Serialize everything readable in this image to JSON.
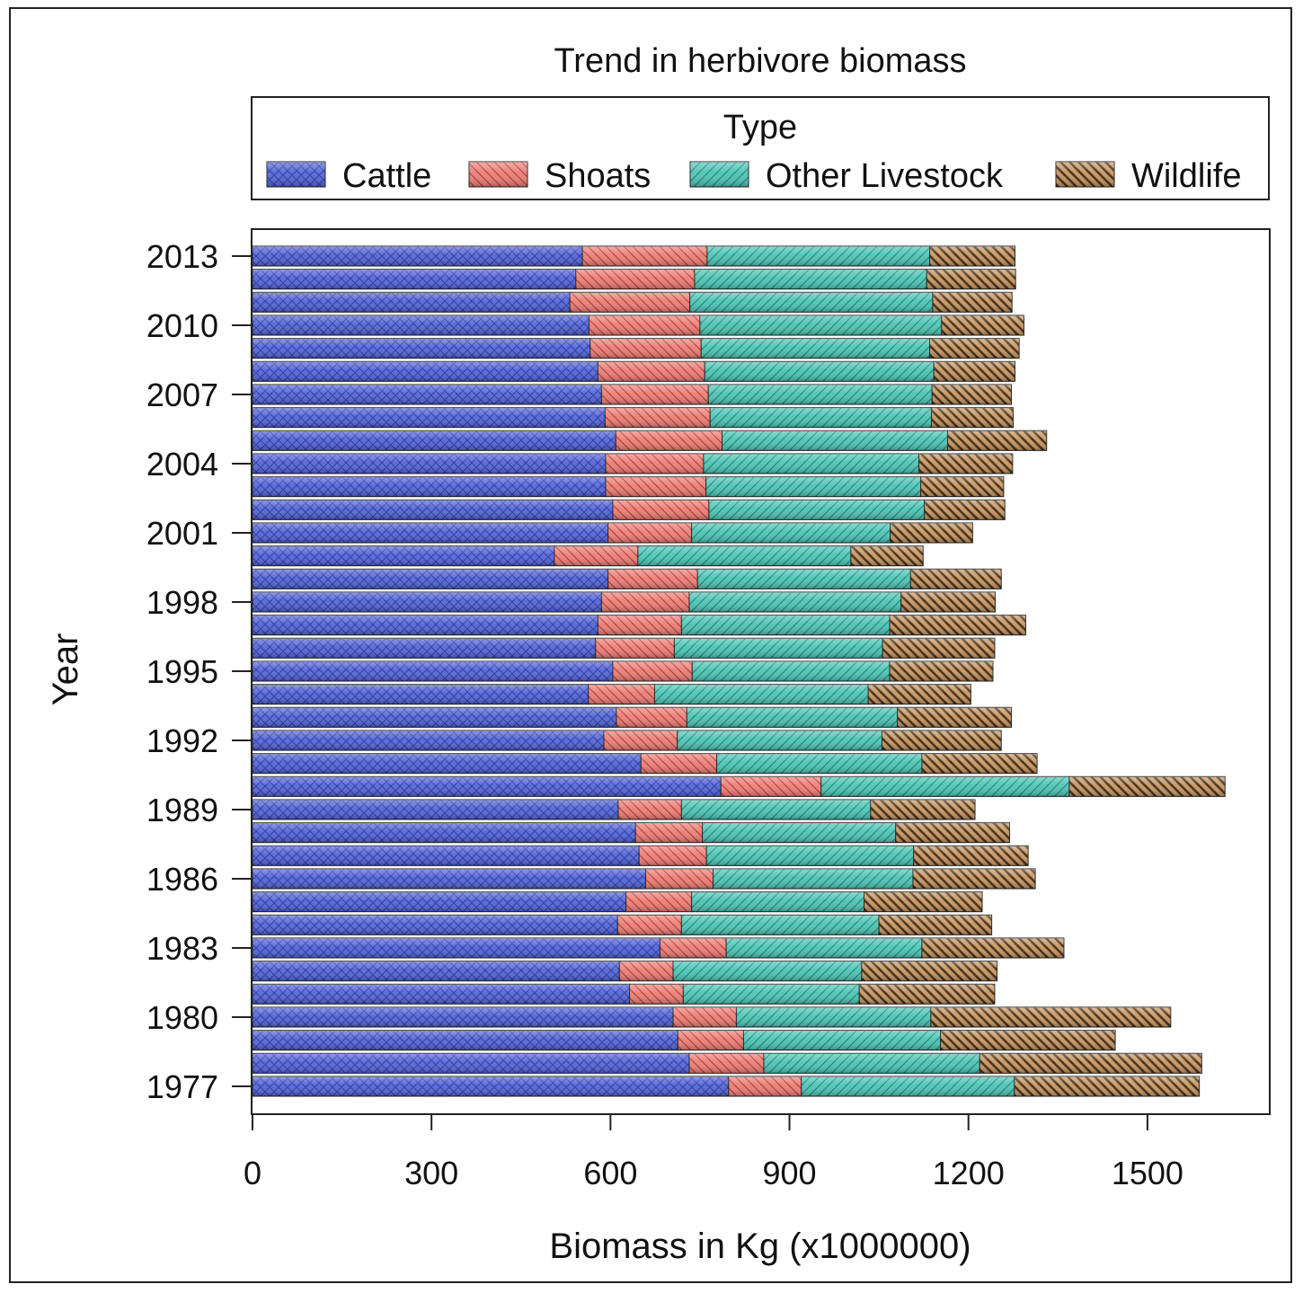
{
  "chart_data": {
    "type": "bar",
    "orientation": "horizontal",
    "stacked": true,
    "title": "Trend in herbivore biomass",
    "xlabel": "Biomass in Kg (x1000000)",
    "ylabel": "Year",
    "xlim": [
      0,
      1705
    ],
    "xticks": [
      0,
      300,
      600,
      900,
      1200,
      1500
    ],
    "yticks": [
      2013,
      2010,
      2007,
      2004,
      2001,
      1998,
      1995,
      1992,
      1989,
      1986,
      1983,
      1980,
      1977
    ],
    "legend": {
      "title": "Type",
      "placement": "top",
      "entries": [
        "Cattle",
        "Shoats",
        "Other Livestock",
        "Wildlife"
      ]
    },
    "colors": {
      "Cattle": "#5566d8",
      "Shoats": "#ee7d75",
      "Other Livestock": "#4cc5b5",
      "Wildlife": "#c9955e"
    },
    "categories": [
      1977,
      1978,
      1979,
      1980,
      1981,
      1982,
      1983,
      1984,
      1985,
      1986,
      1987,
      1988,
      1989,
      1990,
      1991,
      1992,
      1993,
      1994,
      1995,
      1996,
      1997,
      1998,
      1999,
      2000,
      2001,
      2002,
      2003,
      2004,
      2005,
      2006,
      2007,
      2008,
      2009,
      2010,
      2011,
      2012,
      2013
    ],
    "series": [
      {
        "name": "Cattle",
        "values": [
          798,
          732,
          713,
          705,
          632,
          615,
          683,
          612,
          626,
          659,
          648,
          642,
          613,
          785,
          651,
          589,
          610,
          563,
          604,
          575,
          579,
          585,
          596,
          506,
          596,
          604,
          592,
          592,
          609,
          591,
          585,
          579,
          566,
          564,
          532,
          542,
          553
        ]
      },
      {
        "name": "Shoats",
        "values": [
          122,
          125,
          110,
          106,
          90,
          90,
          111,
          107,
          110,
          113,
          113,
          112,
          106,
          168,
          127,
          123,
          118,
          111,
          133,
          132,
          140,
          147,
          150,
          140,
          140,
          161,
          168,
          164,
          178,
          176,
          179,
          179,
          186,
          186,
          201,
          199,
          209
        ]
      },
      {
        "name": "Other Livestock",
        "values": [
          357,
          362,
          330,
          326,
          295,
          316,
          328,
          331,
          289,
          335,
          347,
          324,
          317,
          416,
          344,
          343,
          353,
          358,
          331,
          349,
          349,
          355,
          357,
          357,
          333,
          361,
          360,
          361,
          378,
          371,
          375,
          384,
          383,
          405,
          407,
          389,
          373
        ]
      },
      {
        "name": "Wildlife",
        "values": [
          310,
          372,
          293,
          402,
          227,
          227,
          238,
          189,
          198,
          205,
          192,
          191,
          175,
          261,
          193,
          200,
          191,
          172,
          173,
          188,
          228,
          158,
          152,
          121,
          138,
          135,
          139,
          157,
          166,
          137,
          133,
          136,
          150,
          138,
          133,
          149,
          143
        ]
      }
    ]
  }
}
